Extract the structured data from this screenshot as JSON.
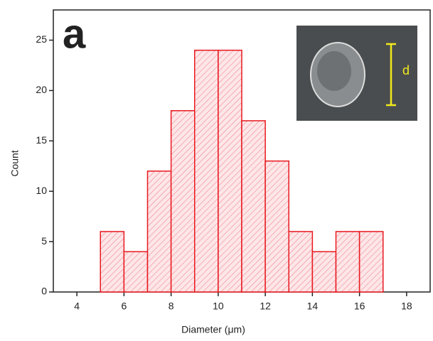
{
  "chart_data": {
    "type": "histogram",
    "panel_label": "a",
    "inset_label": "d",
    "xlabel": "Diameter (μm)",
    "ylabel": "Count",
    "bins": [
      5,
      6,
      7,
      8,
      9,
      10,
      11,
      12,
      13,
      14,
      15,
      16,
      17
    ],
    "values": [
      6,
      4,
      12,
      18,
      24,
      24,
      17,
      13,
      6,
      4,
      6,
      6
    ],
    "color": "#e8191f",
    "xlim": [
      3,
      19
    ],
    "xticks": [
      4,
      6,
      8,
      10,
      12,
      14,
      16,
      18
    ],
    "ylim": [
      0,
      28
    ],
    "yticks": [
      0,
      5,
      10,
      15,
      20,
      25
    ]
  }
}
